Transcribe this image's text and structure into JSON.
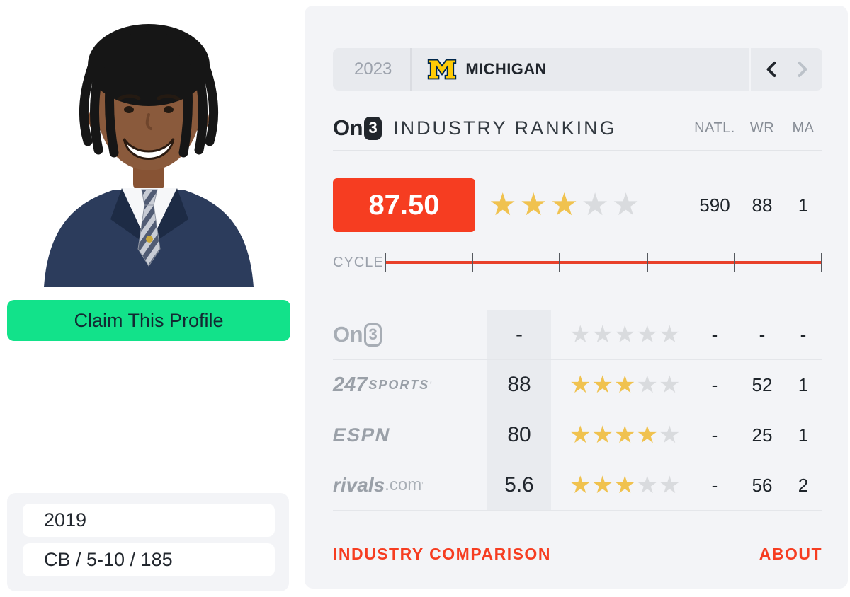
{
  "profile": {
    "photo": "player-headshot",
    "claim_button": "Claim This Profile",
    "class_year": "2019",
    "position_vitals": "CB / 5-10 / 185"
  },
  "team_bar": {
    "year": "2023",
    "team": "MICHIGAN"
  },
  "ranking": {
    "brand_on": "On",
    "brand_three": "3",
    "title": "INDUSTRY RANKING",
    "columns": [
      "NATL.",
      "WR",
      "MA"
    ],
    "score": "87.50",
    "stars": 3,
    "natl": "590",
    "wr": "88",
    "ma": "1",
    "cycle_label": "CYCLE"
  },
  "services": [
    {
      "name_main": "On",
      "name_sub": "3",
      "score": "-",
      "stars": 0,
      "natl": "-",
      "wr": "-",
      "ma": "-"
    },
    {
      "name_main": "247",
      "name_sub": "SPORTS",
      "trademark": "'",
      "score": "88",
      "stars": 3,
      "natl": "-",
      "wr": "52",
      "ma": "1"
    },
    {
      "name_main": "ESPN",
      "score": "80",
      "stars": 4,
      "natl": "-",
      "wr": "25",
      "ma": "1"
    },
    {
      "name_main": "rivals",
      "name_sub": ".com",
      "trademark": "'",
      "score": "5.6",
      "stars": 3,
      "natl": "-",
      "wr": "56",
      "ma": "2"
    }
  ],
  "footer": {
    "industry_comparison": "INDUSTRY COMPARISON",
    "about": "ABOUT"
  },
  "colors": {
    "accent_red": "#F63D21",
    "star_gold": "#F0C24F",
    "claim_green": "#12E28A",
    "michigan_maize": "#FFCB05",
    "michigan_blue": "#00274C"
  }
}
